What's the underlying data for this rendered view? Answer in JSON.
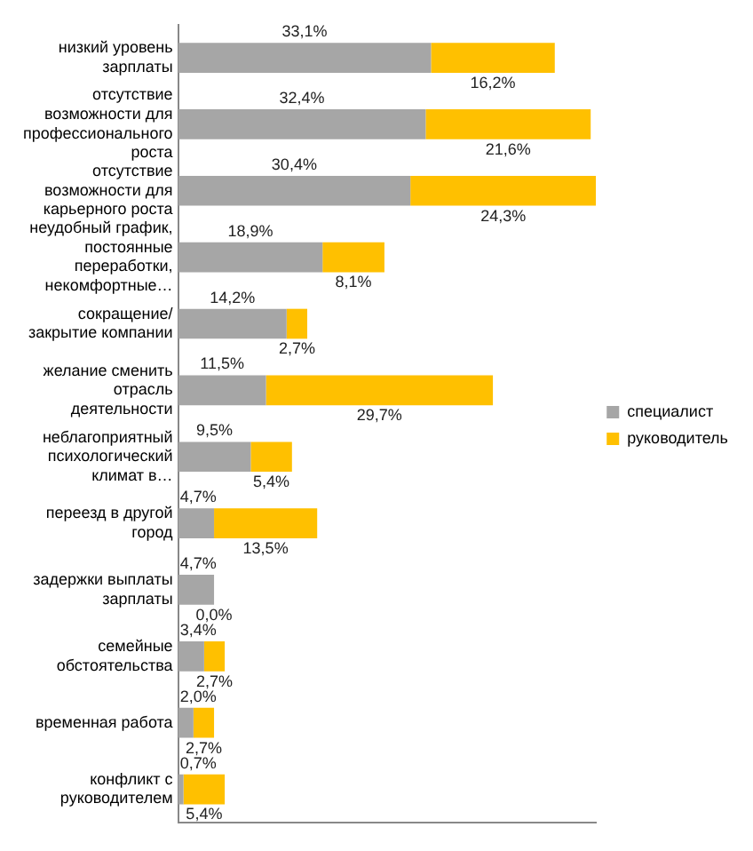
{
  "chart_data": {
    "type": "bar",
    "orientation": "horizontal",
    "stacked": true,
    "categories": [
      "низкий уровень зарплаты",
      "отсутствие возможности для профессионального роста",
      "отсутствие возможности для карьерного роста",
      "неудобный график, постоянные переработки, некомфортные…",
      "сокращение/ закрытие компании",
      "желание сменить отрасль деятельности",
      "неблагоприятный психологический климат в…",
      "переезд в другой город",
      "задержки выплаты зарплаты",
      "семейные обстоятельства",
      "временная работа",
      "конфликт с руководителем"
    ],
    "series": [
      {
        "name": "специалист",
        "color": "#a6a6a6",
        "values": [
          33.1,
          32.4,
          30.4,
          18.9,
          14.2,
          11.5,
          9.5,
          4.7,
          4.7,
          3.4,
          2.0,
          0.7
        ],
        "value_labels": [
          "33,1%",
          "32,4%",
          "30,4%",
          "18,9%",
          "14,2%",
          "11,5%",
          "9,5%",
          "4,7%",
          "4,7%",
          "3,4%",
          "2,0%",
          "0,7%"
        ]
      },
      {
        "name": "руководитель",
        "color": "#ffc000",
        "values": [
          16.2,
          21.6,
          24.3,
          8.1,
          2.7,
          29.7,
          5.4,
          13.5,
          0.0,
          2.7,
          2.7,
          5.4
        ],
        "value_labels": [
          "16,2%",
          "21,6%",
          "24,3%",
          "8,1%",
          "2,7%",
          "29,7%",
          "5,4%",
          "13,5%",
          "0,0%",
          "2,7%",
          "2,7%",
          "5,4%"
        ]
      }
    ],
    "tick_labels": "y",
    "grid": false,
    "legend": "right"
  }
}
